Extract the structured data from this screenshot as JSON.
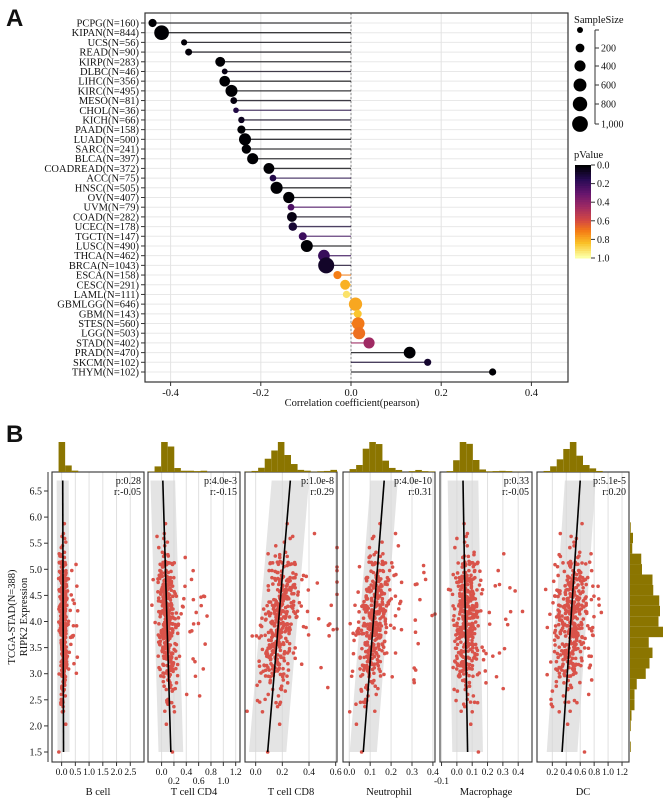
{
  "chart_data": [
    {
      "panel": "A",
      "type": "scatter",
      "subtype": "lollipop",
      "xlabel": "Correlation coefficient(pearson)",
      "xlim": [
        -0.46,
        0.48
      ],
      "xticks": [
        -0.4,
        -0.2,
        0.0,
        0.2,
        0.4
      ],
      "xtick_labels": [
        "-0.4",
        "-0.2",
        "0.0",
        "0.2",
        "0.4"
      ],
      "grid": true,
      "categories": [
        "PCPG(N=160)",
        "KIPAN(N=844)",
        "UCS(N=56)",
        "READ(N=90)",
        "KIRP(N=283)",
        "DLBC(N=46)",
        "LIHC(N=356)",
        "KIRC(N=495)",
        "MESO(N=81)",
        "CHOL(N=36)",
        "KICH(N=66)",
        "PAAD(N=158)",
        "LUAD(N=500)",
        "SARC(N=241)",
        "BLCA(N=397)",
        "COADREAD(N=372)",
        "ACC(N=75)",
        "HNSC(N=505)",
        "OV(N=407)",
        "UVM(N=79)",
        "COAD(N=282)",
        "UCEC(N=178)",
        "TGCT(N=147)",
        "LUSC(N=490)",
        "THCA(N=462)",
        "BRCA(N=1043)",
        "ESCA(N=158)",
        "CESC(N=291)",
        "LAML(N=111)",
        "GBMLGG(N=646)",
        "GBM(N=143)",
        "STES(N=560)",
        "LGG(N=503)",
        "STAD(N=402)",
        "PRAD(N=470)",
        "SKCM(N=102)",
        "THYM(N=102)"
      ],
      "sample_size": [
        160,
        844,
        56,
        90,
        283,
        46,
        356,
        495,
        81,
        36,
        66,
        158,
        500,
        241,
        397,
        372,
        75,
        505,
        407,
        79,
        282,
        178,
        147,
        490,
        462,
        1043,
        158,
        291,
        111,
        646,
        143,
        560,
        503,
        402,
        470,
        102,
        102
      ],
      "correlation": [
        -0.44,
        -0.42,
        -0.37,
        -0.36,
        -0.29,
        -0.28,
        -0.28,
        -0.265,
        -0.26,
        -0.255,
        -0.243,
        -0.243,
        -0.235,
        -0.232,
        -0.218,
        -0.182,
        -0.173,
        -0.165,
        -0.138,
        -0.133,
        -0.131,
        -0.129,
        -0.107,
        -0.098,
        -0.06,
        -0.055,
        -0.03,
        -0.013,
        -0.01,
        0.01,
        0.015,
        0.016,
        0.018,
        0.04,
        0.13,
        0.17,
        0.314
      ],
      "p_value": [
        0.0,
        0.0,
        0.01,
        0.01,
        0.0,
        0.03,
        0.0,
        0.0,
        0.02,
        0.12,
        0.05,
        0.0,
        0.0,
        0.0,
        0.0,
        0.0,
        0.13,
        0.0,
        0.0,
        0.24,
        0.03,
        0.09,
        0.2,
        0.0,
        0.19,
        0.07,
        0.72,
        0.82,
        0.93,
        0.8,
        0.86,
        0.71,
        0.69,
        0.45,
        0.0,
        0.08,
        0.0
      ],
      "legend": {
        "size_title": "SampleSize",
        "size_ticks": [
          200,
          400,
          600,
          800,
          1000
        ],
        "size_tick_labels": [
          "200",
          "400",
          "600",
          "800",
          "1,000"
        ],
        "color_title": "pValue",
        "color_ticks": [
          "0.0",
          "0.2",
          "0.4",
          "0.6",
          "0.8",
          "1.0"
        ],
        "placement": "right"
      }
    },
    {
      "panel": "B",
      "type": "scatter",
      "ylabel_line1": "TCGA-STAD(N=388)",
      "ylabel_line2": "RIPK2 Expression",
      "ylim": [
        1.3,
        6.85
      ],
      "yticks": [
        "1.5",
        "2.0",
        "2.5",
        "3.0",
        "3.5",
        "4.0",
        "4.5",
        "5.0",
        "5.5",
        "6.0",
        "6.5"
      ],
      "point_color": "#d9534a",
      "hist_color": "#8b7500",
      "panels": [
        {
          "xlabel": "B cell",
          "p": "p:0.28",
          "r": "r:-0.05",
          "xlim": [
            -0.35,
            3.0
          ],
          "xticks": [
            "0.0",
            "0.5",
            "1.0",
            "1.5",
            "2.0",
            "2.5"
          ],
          "xtickvals": [
            0,
            0.5,
            1,
            1.5,
            2,
            2.5
          ],
          "fit": [
            0.07,
            0.04
          ],
          "band": 0.22,
          "spread": 0.06,
          "tail": 0.5
        },
        {
          "xlabel": "T cell CD4",
          "p": "p:4.0e-3",
          "r": "r:-0.15",
          "xlim": [
            -0.22,
            1.27
          ],
          "xticks": [
            "0.0",
            "0.2",
            "0.4",
            "0.6",
            "0.8",
            "1.0",
            "1.2"
          ],
          "xtickvals": [
            0,
            0.2,
            0.4,
            0.6,
            0.8,
            1.0,
            1.2
          ],
          "fit": [
            0.15,
            0.02
          ],
          "band": 0.2,
          "spread": 0.07,
          "tail": 0.6
        },
        {
          "xlabel": "T cell CD8",
          "p": "p:1.0e-8",
          "r": "r:0.29",
          "xlim": [
            -0.08,
            0.61
          ],
          "xticks": [
            "0.0",
            "0.2",
            "0.4",
            "0.6"
          ],
          "xtickvals": [
            0,
            0.2,
            0.4,
            0.6
          ],
          "fit": [
            0.09,
            0.26
          ],
          "band": 0.14,
          "spread": 0.06,
          "tail": 0.6
        },
        {
          "xlabel": "Neutrophil",
          "p": "p:4.0e-10",
          "r": "r:0.31",
          "xlim": [
            -0.03,
            0.41
          ],
          "xticks": [
            "0.0",
            "0.1",
            "0.2",
            "0.3",
            "0.4"
          ],
          "xtickvals": [
            0,
            0.1,
            0.2,
            0.3,
            0.4
          ],
          "fit": [
            0.067,
            0.167
          ],
          "band": 0.065,
          "spread": 0.035,
          "tail": 0.25
        },
        {
          "xlabel": "Macrophage",
          "p": "p:0.33",
          "r": "r:-0.05",
          "xlim": [
            -0.11,
            0.49
          ],
          "xticks": [
            "-0.1",
            "0.0",
            "0.1",
            "0.2",
            "0.3",
            "0.4"
          ],
          "xtickvals": [
            -0.1,
            0,
            0.1,
            0.2,
            0.3,
            0.4
          ],
          "fit": [
            0.07,
            0.04
          ],
          "band": 0.1,
          "spread": 0.04,
          "tail": 0.35
        },
        {
          "xlabel": "DC",
          "p": "p:5.1e-5",
          "r": "r:0.20",
          "xlim": [
            -0.02,
            1.3
          ],
          "xticks": [
            "0.2",
            "0.4",
            "0.6",
            "0.8",
            "1.0",
            "1.2"
          ],
          "xtickvals": [
            0.2,
            0.4,
            0.6,
            0.8,
            1.0,
            1.2
          ],
          "fit": [
            0.34,
            0.6
          ],
          "band": 0.22,
          "spread": 0.13,
          "tail": 0.3
        }
      ]
    }
  ],
  "labels": {
    "panel_a": "A",
    "panel_b": "B"
  }
}
